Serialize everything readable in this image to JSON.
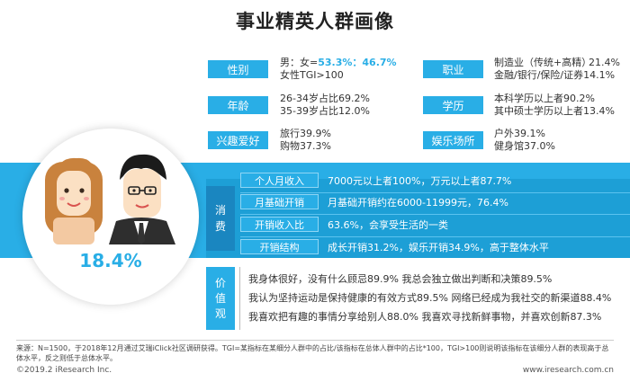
{
  "title": "事业精英人群画像",
  "profile": {
    "gender": {
      "label": "性别",
      "line1_prefix": "男：女=",
      "ratio": "53.3%：46.7%",
      "line2": "女性TGI>100"
    },
    "age": {
      "label": "年龄",
      "line1": "26-34岁占比69.2%",
      "line2": "35-39岁占比12.0%"
    },
    "interest": {
      "label": "兴趣爱好",
      "line1": "旅行39.9%",
      "line2": "购物37.3%"
    },
    "occupation": {
      "label": "职业",
      "line1_left": "制造业（传统+高精）",
      "line1_right": "21.4%",
      "line2": "金融/银行/保险/证券14.1%"
    },
    "education": {
      "label": "学历",
      "line1": "本科学历以上者90.2%",
      "line2": "其中硕士学历以上者13.4%"
    },
    "entertainment": {
      "label": "娱乐场所",
      "line1": "户外39.1%",
      "line2": "健身馆37.0%"
    }
  },
  "consumption": {
    "label_chars": [
      "消",
      "费"
    ],
    "rows": [
      {
        "tag": "个人月收入",
        "value": "7000元以上者100%，万元以上者87.7%"
      },
      {
        "tag": "月基础开销",
        "value": "月基础开销约在6000-11999元，76.4%"
      },
      {
        "tag": "开销收入比",
        "value": "63.6%，会享受生活的一类"
      },
      {
        "tag": "开销结构",
        "value": "成长开销31.2%，娱乐开销34.9%，高于整体水平"
      }
    ]
  },
  "values": {
    "label_chars": [
      "价",
      "值",
      "观"
    ],
    "lines": [
      "我身体很好，没有什么顾忌89.9%  我总会独立做出判断和决策89.5%",
      "我认为坚持运动是保持健康的有效方式89.5%   网络已经成为我社交的新渠道88.4%",
      "我喜欢把有趣的事情分享给别人88.0%    我喜欢寻找新鲜事物，并喜欢创新87.3%"
    ]
  },
  "share_percent": "18.4%",
  "footer": {
    "source": "来源：N=1500，于2018年12月通过艾瑞iClick社区调研获得。TGI=某指标在某细分人群中的占比/该指标在总体人群中的占比*100，TGI>100则说明该指标在该细分人群的表现高于总体水平，反之则低于总体水平。",
    "copyright": "©2019.2 iResearch Inc.",
    "url": "www.iresearch.com.cn"
  },
  "colors": {
    "accent": "#29aee6",
    "band": "#29aee6",
    "band_dark": "#1d9fd6"
  }
}
